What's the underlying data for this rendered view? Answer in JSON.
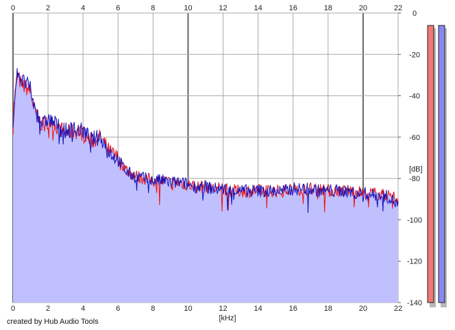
{
  "chart_data": {
    "type": "area",
    "title": "",
    "xlabel": "[kHz]",
    "ylabel": "[dB]",
    "xlim": [
      0,
      22
    ],
    "ylim": [
      -140,
      0
    ],
    "x_ticks": [
      "0",
      "2",
      "4",
      "6",
      "8",
      "10",
      "12",
      "14",
      "16",
      "18",
      "20",
      "22"
    ],
    "y_ticks": [
      "0",
      "-20",
      "-40",
      "-60",
      "-80",
      "-100",
      "-120",
      "-140"
    ],
    "grid": true,
    "series": [
      {
        "color": "#ee1111",
        "x": [
          0,
          0.25,
          0.5,
          0.75,
          1,
          1.25,
          1.5,
          1.75,
          2,
          2.5,
          3,
          3.5,
          4,
          4.5,
          5,
          5.5,
          6,
          6.5,
          7,
          7.5,
          8,
          8.5,
          9,
          9.5,
          10,
          10.5,
          11,
          11.5,
          12,
          12.5,
          13,
          13.5,
          14,
          14.5,
          15,
          15.5,
          16,
          16.5,
          17,
          17.5,
          18,
          18.5,
          19,
          19.5,
          20,
          20.5,
          21,
          21.5,
          22
        ],
        "values": [
          -48,
          -30,
          -35,
          -36,
          -38,
          -48,
          -52,
          -55,
          -52,
          -55,
          -58,
          -57,
          -58,
          -62,
          -60,
          -67,
          -70,
          -76,
          -79,
          -80,
          -81,
          -81,
          -82,
          -82,
          -83,
          -84,
          -84,
          -85,
          -85,
          -86,
          -86,
          -86,
          -86,
          -86,
          -86,
          -86,
          -85,
          -85,
          -85,
          -85,
          -86,
          -86,
          -86,
          -86,
          -87,
          -87,
          -88,
          -88,
          -90
        ]
      },
      {
        "color": "#1111bb",
        "x": [
          0,
          0.25,
          0.5,
          0.75,
          1,
          1.25,
          1.5,
          1.75,
          2,
          2.5,
          3,
          3.5,
          4,
          4.5,
          5,
          5.5,
          6,
          6.5,
          7,
          7.5,
          8,
          8.5,
          9,
          9.5,
          10,
          10.5,
          11,
          11.5,
          12,
          12.5,
          13,
          13.5,
          14,
          14.5,
          15,
          15.5,
          16,
          16.5,
          17,
          17.5,
          18,
          18.5,
          19,
          19.5,
          20,
          20.5,
          21,
          21.5,
          22
        ],
        "values": [
          -52,
          -27,
          -33,
          -34,
          -37,
          -47,
          -51,
          -54,
          -51,
          -54,
          -57,
          -56,
          -57,
          -61,
          -60,
          -67,
          -71,
          -77,
          -79,
          -80,
          -81,
          -81,
          -82,
          -82,
          -83,
          -84,
          -84,
          -85,
          -85,
          -86,
          -86,
          -86,
          -86,
          -86,
          -86,
          -86,
          -85,
          -85,
          -85,
          -86,
          -86,
          -86,
          -86,
          -87,
          -87,
          -88,
          -88,
          -89,
          -93
        ]
      }
    ],
    "meters": [
      {
        "color": "#ee7777",
        "value": -6
      },
      {
        "color": "#8888ee",
        "value": -6
      }
    ]
  },
  "footer": {
    "credit": "created by Hub Audio Tools"
  }
}
